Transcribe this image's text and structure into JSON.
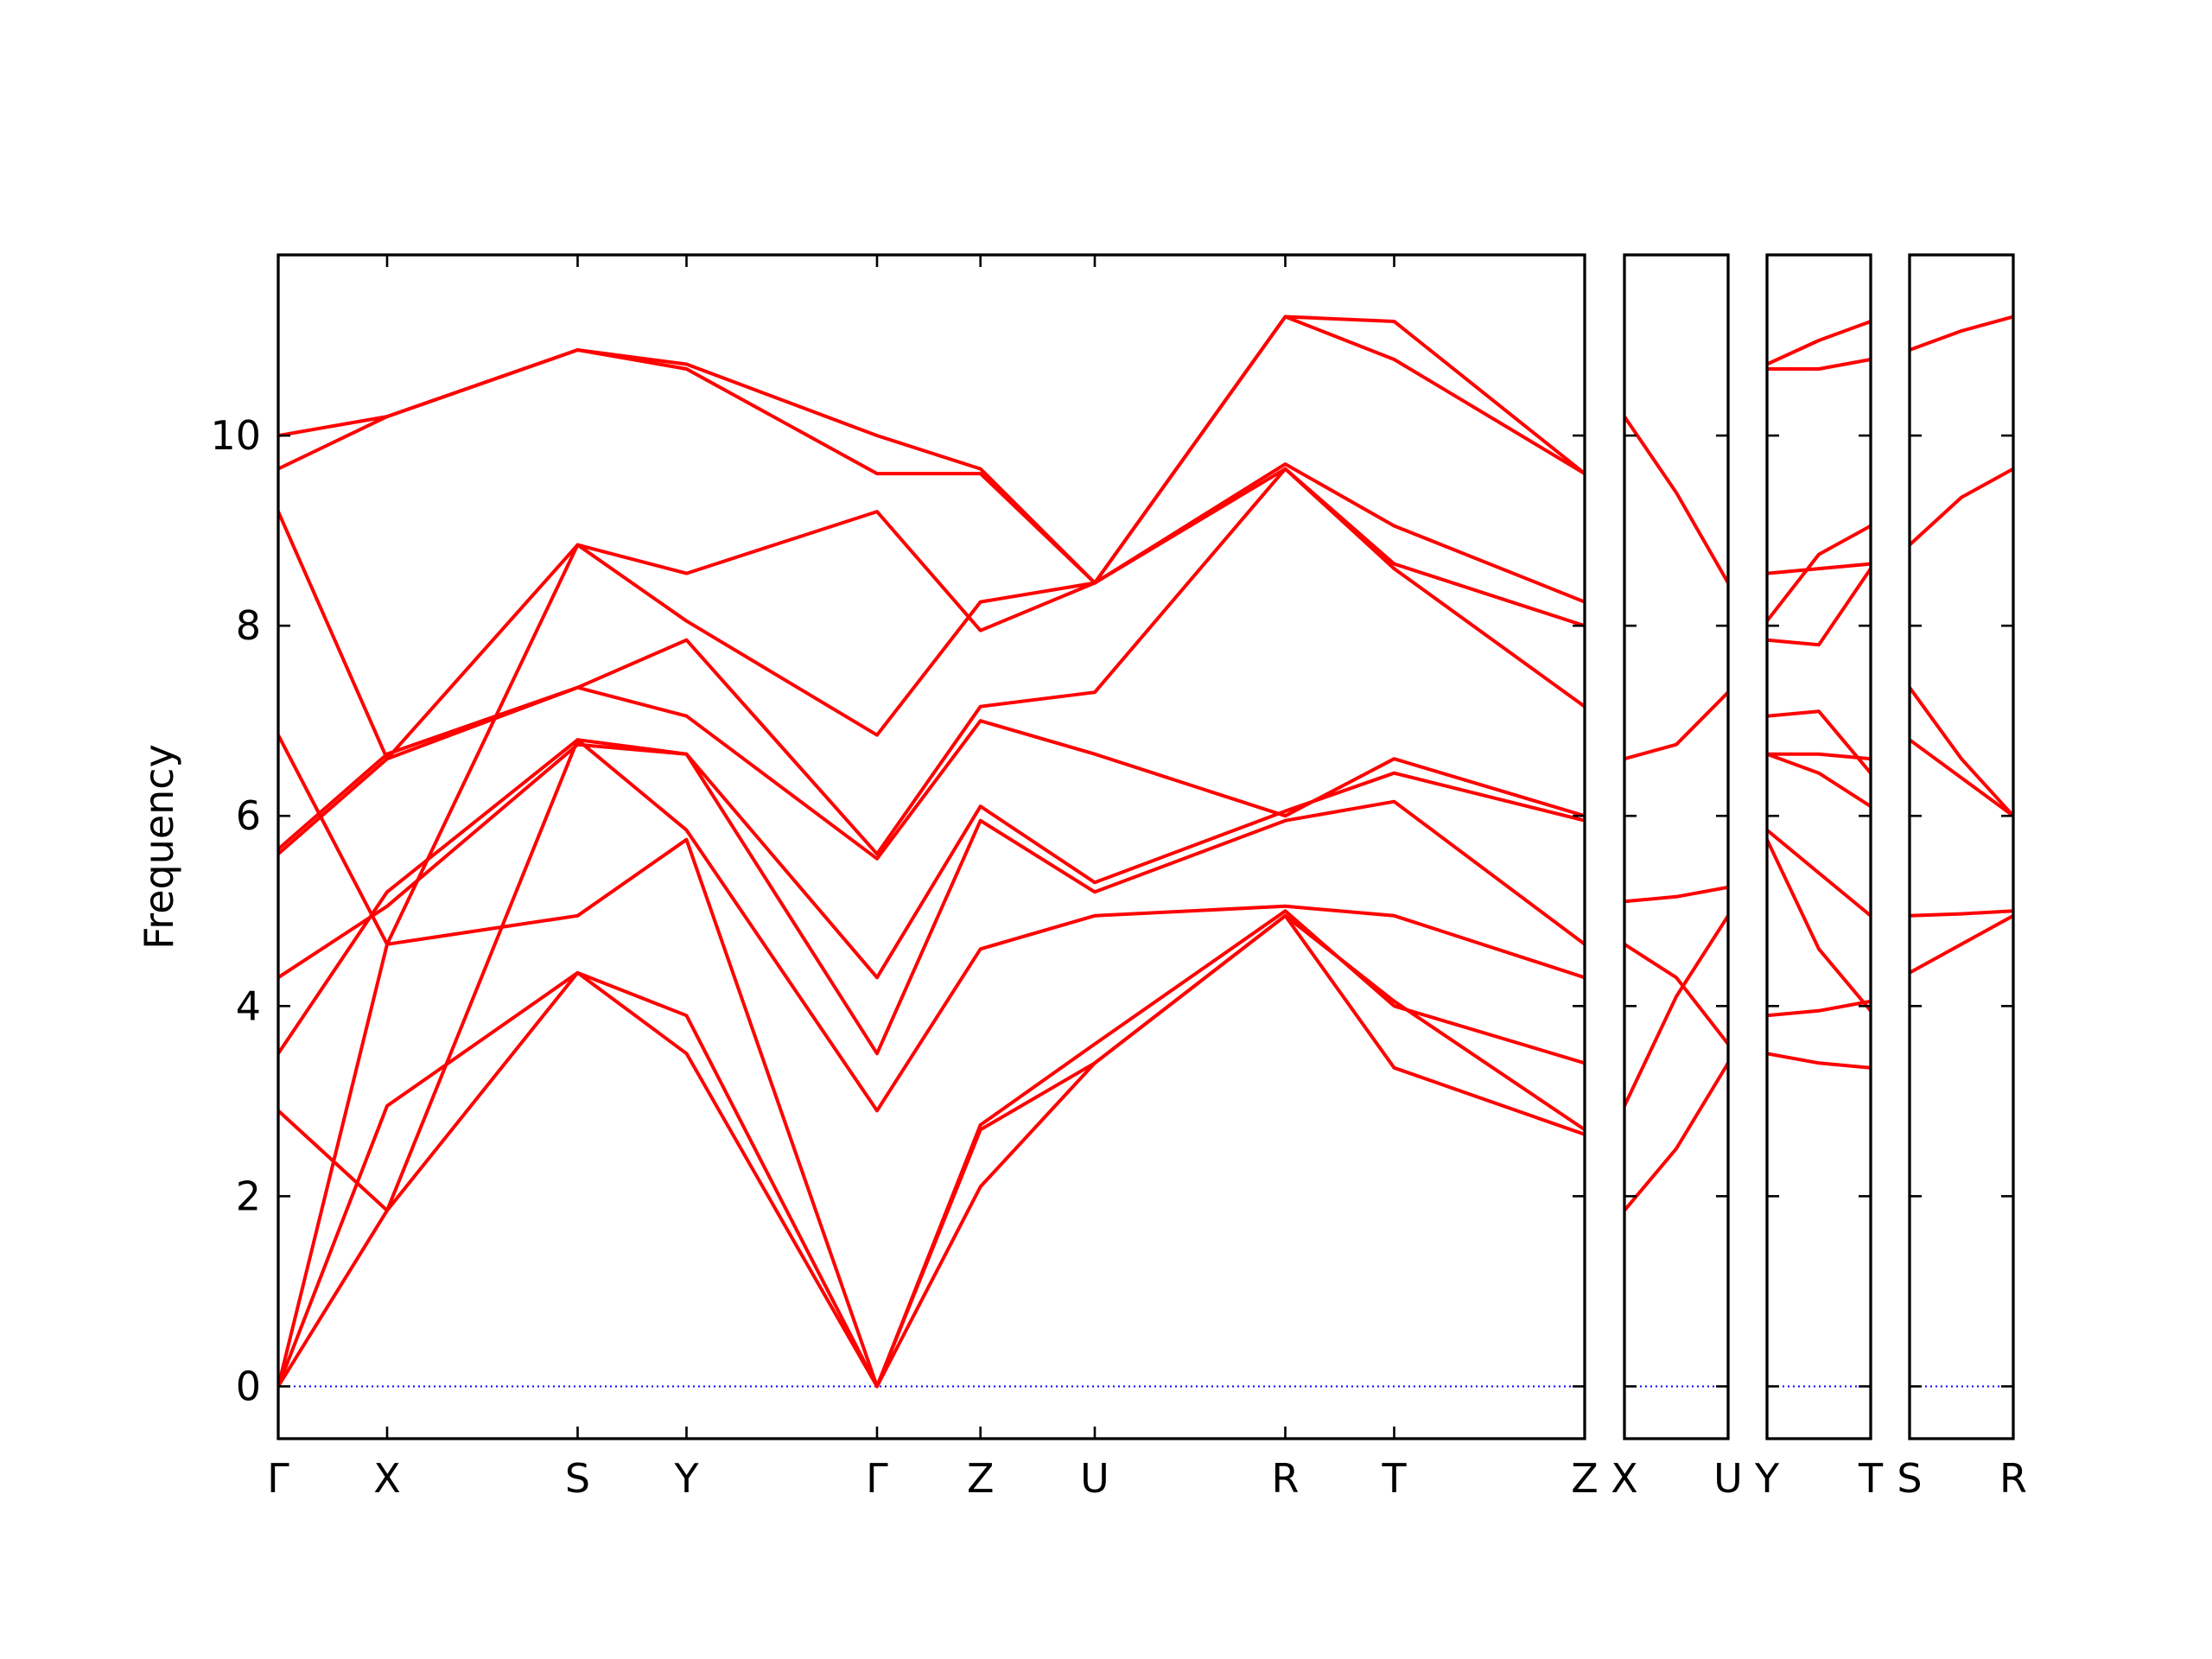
{
  "chart_data": {
    "type": "line",
    "title": "",
    "ylabel": "Frequency",
    "ylim": [
      -0.55,
      11.9
    ],
    "yticks": [
      0,
      2,
      4,
      6,
      8,
      10
    ],
    "grid": false,
    "colors": {
      "bands": "#ff0000",
      "zero_line": "#0000ff"
    },
    "panels": [
      {
        "xlim": [
          0,
          12
        ],
        "ticks": [
          {
            "x": 0,
            "label": "Γ"
          },
          {
            "x": 1,
            "label": "X"
          },
          {
            "x": 2.75,
            "label": "S"
          },
          {
            "x": 3.75,
            "label": "Y"
          },
          {
            "x": 5.5,
            "label": "Γ"
          },
          {
            "x": 6.45,
            "label": "Z"
          },
          {
            "x": 7.5,
            "label": "U"
          },
          {
            "x": 9.25,
            "label": "R"
          },
          {
            "x": 10.25,
            "label": "T"
          },
          {
            "x": 12,
            "label": "Z"
          }
        ],
        "series": [
          {
            "x": [
              0,
              1,
              2.75,
              3.75,
              5.5,
              6.45,
              7.5,
              9.25,
              10.25,
              12
            ],
            "y": [
              0,
              1.85,
              4.35,
              3.5,
              0,
              2.1,
              3.4,
              4.95,
              3.35,
              2.65
            ]
          },
          {
            "x": [
              0,
              1,
              2.75,
              3.75,
              5.5,
              6.45,
              7.5,
              9.25,
              10.25,
              12
            ],
            "y": [
              0,
              2.95,
              4.35,
              3.9,
              0,
              2.7,
              3.4,
              4.95,
              4.05,
              2.7
            ]
          },
          {
            "x": [
              0,
              1,
              2.75,
              3.75,
              5.5,
              6.45,
              7.5,
              9.25,
              10.25,
              12
            ],
            "y": [
              0,
              4.65,
              4.95,
              5.75,
              0,
              2.75,
              3.6,
              5.0,
              4.0,
              3.4
            ]
          },
          {
            "x": [
              0,
              1,
              2.75,
              3.75,
              5.5,
              6.45,
              7.5,
              9.25,
              10.25,
              12
            ],
            "y": [
              2.9,
              1.85,
              6.8,
              5.85,
              2.9,
              4.6,
              4.95,
              5.05,
              4.95,
              4.3
            ]
          },
          {
            "x": [
              0,
              1,
              2.75,
              3.75,
              5.5,
              6.45,
              7.5,
              9.25,
              10.25,
              12
            ],
            "y": [
              3.5,
              5.2,
              6.8,
              6.65,
              3.5,
              5.95,
              5.2,
              5.95,
              6.15,
              4.65
            ]
          },
          {
            "x": [
              0,
              1,
              2.75,
              3.75,
              5.5,
              6.45,
              7.5,
              9.25,
              10.25,
              12
            ],
            "y": [
              4.3,
              5.05,
              6.75,
              6.65,
              4.3,
              6.1,
              5.3,
              6.05,
              6.45,
              5.95
            ]
          },
          {
            "x": [
              0,
              1,
              2.75,
              3.75,
              5.5,
              6.45,
              7.5,
              9.25,
              10.25,
              12
            ],
            "y": [
              5.6,
              6.6,
              7.35,
              7.05,
              5.55,
              7.0,
              6.65,
              6.0,
              6.6,
              6.0
            ]
          },
          {
            "x": [
              0,
              1,
              2.75,
              3.75,
              5.5,
              6.45,
              7.5,
              9.25,
              10.25,
              12
            ],
            "y": [
              5.65,
              6.65,
              7.35,
              7.85,
              5.6,
              7.15,
              7.3,
              9.65,
              8.6,
              7.15
            ]
          },
          {
            "x": [
              0,
              1,
              2.75,
              3.75,
              5.5,
              6.45,
              7.5,
              9.25,
              10.25,
              12
            ],
            "y": [
              6.85,
              4.65,
              8.85,
              8.05,
              6.85,
              8.25,
              8.45,
              9.65,
              8.65,
              8.0
            ]
          },
          {
            "x": [
              0,
              1,
              2.75,
              3.75,
              5.5,
              6.45,
              7.5,
              9.25,
              10.25,
              12
            ],
            "y": [
              9.2,
              6.6,
              8.85,
              8.55,
              9.2,
              7.95,
              8.45,
              9.7,
              9.05,
              8.25
            ]
          },
          {
            "x": [
              0,
              1,
              2.75,
              3.75,
              5.5,
              6.45,
              7.5,
              9.25,
              10.25,
              12
            ],
            "y": [
              9.65,
              10.2,
              10.9,
              10.7,
              9.6,
              9.6,
              8.45,
              11.25,
              10.8,
              9.6
            ]
          },
          {
            "x": [
              0,
              1,
              2.75,
              3.75,
              5.5,
              6.45,
              7.5,
              9.25,
              10.25,
              12
            ],
            "y": [
              10.0,
              10.2,
              10.9,
              10.75,
              10.0,
              9.65,
              8.45,
              11.25,
              11.2,
              9.6
            ]
          }
        ]
      },
      {
        "xlim": [
          0,
          1
        ],
        "ticks": [
          {
            "x": 0,
            "label": "X"
          },
          {
            "x": 1,
            "label": "U"
          }
        ],
        "series": [
          {
            "x": [
              0,
              0.5,
              1
            ],
            "y": [
              1.85,
              2.5,
              3.4
            ]
          },
          {
            "x": [
              0,
              0.5,
              1
            ],
            "y": [
              2.95,
              4.1,
              4.95
            ]
          },
          {
            "x": [
              0,
              0.5,
              1
            ],
            "y": [
              4.65,
              4.3,
              3.6
            ]
          },
          {
            "x": [
              0,
              0.5,
              1
            ],
            "y": [
              5.1,
              5.15,
              5.25
            ]
          },
          {
            "x": [
              0,
              0.5,
              1
            ],
            "y": [
              6.6,
              6.75,
              7.3
            ]
          },
          {
            "x": [
              0,
              0.5,
              1
            ],
            "y": [
              10.2,
              9.4,
              8.45
            ]
          }
        ]
      },
      {
        "xlim": [
          0,
          1
        ],
        "ticks": [
          {
            "x": 0,
            "label": "Y"
          },
          {
            "x": 1,
            "label": "T"
          }
        ],
        "series": [
          {
            "x": [
              0,
              0.5,
              1
            ],
            "y": [
              3.5,
              3.4,
              3.35
            ]
          },
          {
            "x": [
              0,
              0.5,
              1
            ],
            "y": [
              3.9,
              3.95,
              4.05
            ]
          },
          {
            "x": [
              0,
              0.5,
              1
            ],
            "y": [
              5.75,
              4.6,
              3.95
            ]
          },
          {
            "x": [
              0,
              0.5,
              1
            ],
            "y": [
              5.85,
              5.4,
              4.95
            ]
          },
          {
            "x": [
              0,
              0.5,
              1
            ],
            "y": [
              6.65,
              6.65,
              6.6
            ]
          },
          {
            "x": [
              0,
              0.5,
              1
            ],
            "y": [
              6.65,
              6.45,
              6.1
            ]
          },
          {
            "x": [
              0,
              0.5,
              1
            ],
            "y": [
              7.05,
              7.1,
              6.45
            ]
          },
          {
            "x": [
              0,
              0.5,
              1
            ],
            "y": [
              7.85,
              7.8,
              8.6
            ]
          },
          {
            "x": [
              0,
              0.5,
              1
            ],
            "y": [
              8.05,
              8.75,
              9.05
            ]
          },
          {
            "x": [
              0,
              0.5,
              1
            ],
            "y": [
              8.55,
              8.6,
              8.65
            ]
          },
          {
            "x": [
              0,
              0.5,
              1
            ],
            "y": [
              10.7,
              10.7,
              10.8
            ]
          },
          {
            "x": [
              0,
              0.5,
              1
            ],
            "y": [
              10.75,
              11.0,
              11.2
            ]
          }
        ]
      },
      {
        "xlim": [
          0,
          1
        ],
        "ticks": [
          {
            "x": 0,
            "label": "S"
          },
          {
            "x": 1,
            "label": "R"
          }
        ],
        "series": [
          {
            "x": [
              0,
              0.5,
              1
            ],
            "y": [
              4.35,
              4.65,
              4.95
            ]
          },
          {
            "x": [
              0,
              0.5,
              1
            ],
            "y": [
              4.95,
              4.97,
              5.0
            ]
          },
          {
            "x": [
              0,
              0.5,
              1
            ],
            "y": [
              6.8,
              6.4,
              6.0
            ]
          },
          {
            "x": [
              0,
              0.5,
              1
            ],
            "y": [
              7.35,
              6.6,
              6.0
            ]
          },
          {
            "x": [
              0,
              0.5,
              1
            ],
            "y": [
              8.85,
              9.35,
              9.65
            ]
          },
          {
            "x": [
              0,
              0.5,
              1
            ],
            "y": [
              10.9,
              11.1,
              11.25
            ]
          }
        ]
      }
    ]
  }
}
